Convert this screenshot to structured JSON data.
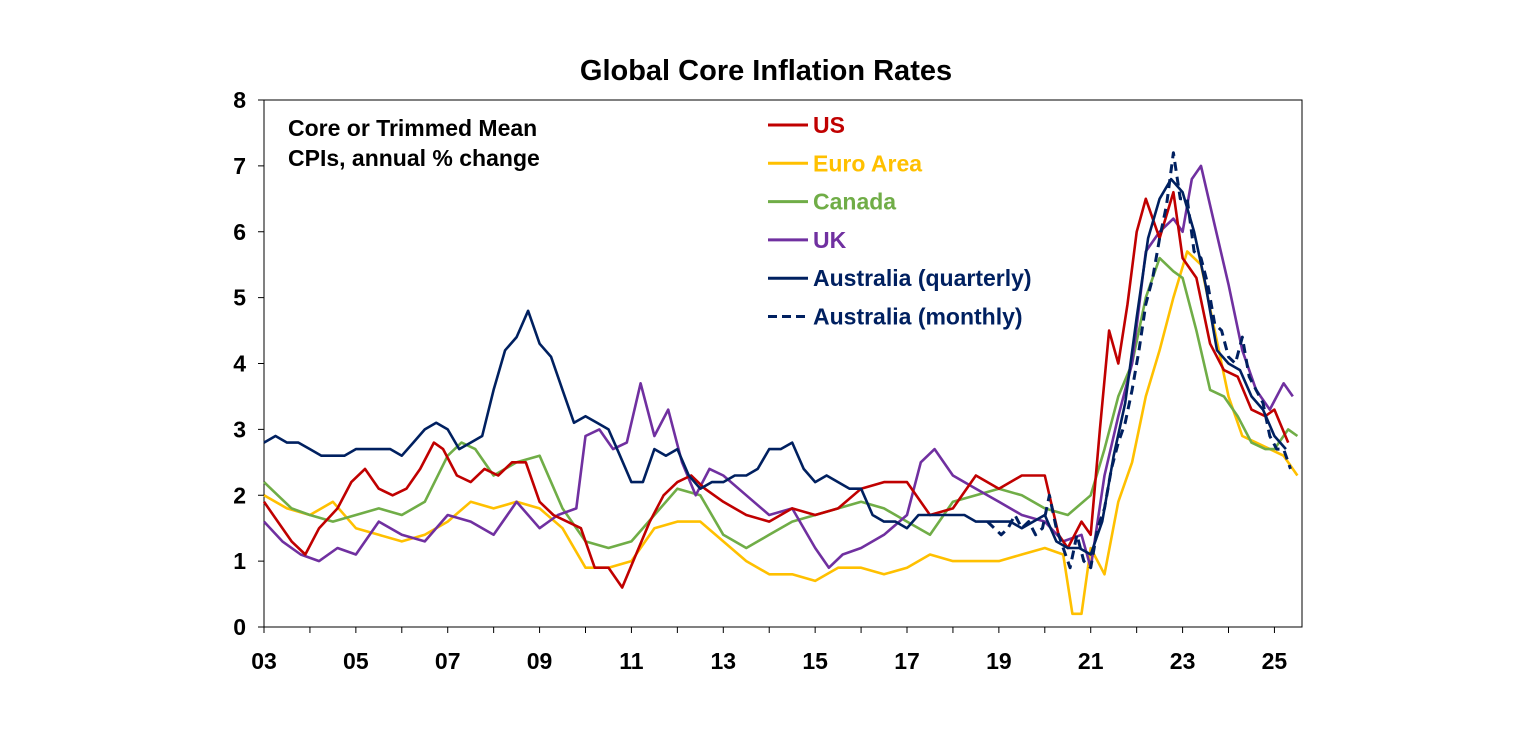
{
  "chart_data": {
    "type": "line",
    "title": "Global Core Inflation Rates",
    "annotation": [
      "Core or Trimmed Mean",
      "CPIs, annual % change"
    ],
    "xlabel": "",
    "ylabel": "",
    "xlim": [
      2003.0,
      2025.6
    ],
    "ylim": [
      0,
      8
    ],
    "yticks": [
      0,
      1,
      2,
      3,
      4,
      5,
      6,
      7,
      8
    ],
    "xtick_values": [
      2003,
      2005,
      2007,
      2009,
      2011,
      2013,
      2015,
      2017,
      2019,
      2021,
      2023,
      2025
    ],
    "xtick_labels": [
      "03",
      "05",
      "07",
      "09",
      "11",
      "13",
      "15",
      "17",
      "19",
      "21",
      "23",
      "25"
    ],
    "grid": false,
    "legend_position": "top-center",
    "series": [
      {
        "name": "US",
        "color": "#c00000",
        "style": "solid",
        "x": [
          2003.0,
          2003.3,
          2003.6,
          2003.9,
          2004.2,
          2004.6,
          2004.9,
          2005.2,
          2005.5,
          2005.8,
          2006.1,
          2006.4,
          2006.7,
          2006.9,
          2007.2,
          2007.5,
          2007.8,
          2008.1,
          2008.4,
          2008.7,
          2009.0,
          2009.3,
          2009.6,
          2009.9,
          2010.2,
          2010.5,
          2010.8,
          2011.1,
          2011.4,
          2011.7,
          2012.0,
          2012.3,
          2012.6,
          2013.0,
          2013.5,
          2014.0,
          2014.5,
          2015.0,
          2015.5,
          2016.0,
          2016.5,
          2017.0,
          2017.5,
          2018.0,
          2018.5,
          2019.0,
          2019.5,
          2020.0,
          2020.3,
          2020.5,
          2020.8,
          2021.0,
          2021.2,
          2021.4,
          2021.6,
          2021.8,
          2022.0,
          2022.2,
          2022.5,
          2022.8,
          2023.0,
          2023.3,
          2023.6,
          2023.9,
          2024.2,
          2024.5,
          2024.8,
          2025.0,
          2025.3
        ],
        "values": [
          1.9,
          1.6,
          1.3,
          1.1,
          1.5,
          1.8,
          2.2,
          2.4,
          2.1,
          2.0,
          2.1,
          2.4,
          2.8,
          2.7,
          2.3,
          2.2,
          2.4,
          2.3,
          2.5,
          2.5,
          1.9,
          1.7,
          1.6,
          1.5,
          0.9,
          0.9,
          0.6,
          1.1,
          1.6,
          2.0,
          2.2,
          2.3,
          2.1,
          1.9,
          1.7,
          1.6,
          1.8,
          1.7,
          1.8,
          2.1,
          2.2,
          2.2,
          1.7,
          1.8,
          2.3,
          2.1,
          2.3,
          2.3,
          1.4,
          1.2,
          1.6,
          1.4,
          3.0,
          4.5,
          4.0,
          4.9,
          6.0,
          6.5,
          5.9,
          6.6,
          5.6,
          5.3,
          4.3,
          3.9,
          3.8,
          3.3,
          3.2,
          3.3,
          2.8
        ]
      },
      {
        "name": "Euro Area",
        "color": "#ffc000",
        "style": "solid",
        "x": [
          2003.0,
          2003.5,
          2004.0,
          2004.5,
          2005.0,
          2005.5,
          2006.0,
          2006.5,
          2007.0,
          2007.5,
          2008.0,
          2008.5,
          2009.0,
          2009.5,
          2010.0,
          2010.5,
          2011.0,
          2011.5,
          2012.0,
          2012.5,
          2013.0,
          2013.5,
          2014.0,
          2014.5,
          2015.0,
          2015.5,
          2016.0,
          2016.5,
          2017.0,
          2017.5,
          2018.0,
          2018.5,
          2019.0,
          2019.5,
          2020.0,
          2020.4,
          2020.6,
          2020.8,
          2021.0,
          2021.3,
          2021.6,
          2021.9,
          2022.2,
          2022.5,
          2022.8,
          2023.1,
          2023.4,
          2023.7,
          2024.0,
          2024.3,
          2024.6,
          2024.9,
          2025.2,
          2025.5
        ],
        "values": [
          2.0,
          1.8,
          1.7,
          1.9,
          1.5,
          1.4,
          1.3,
          1.4,
          1.6,
          1.9,
          1.8,
          1.9,
          1.8,
          1.5,
          0.9,
          0.9,
          1.0,
          1.5,
          1.6,
          1.6,
          1.3,
          1.0,
          0.8,
          0.8,
          0.7,
          0.9,
          0.9,
          0.8,
          0.9,
          1.1,
          1.0,
          1.0,
          1.0,
          1.1,
          1.2,
          1.1,
          0.2,
          0.2,
          1.2,
          0.8,
          1.9,
          2.5,
          3.5,
          4.2,
          5.0,
          5.7,
          5.5,
          4.5,
          3.5,
          2.9,
          2.8,
          2.7,
          2.6,
          2.3
        ]
      },
      {
        "name": "Canada",
        "color": "#70ad47",
        "style": "solid",
        "x": [
          2003.0,
          2003.3,
          2003.6,
          2004.0,
          2004.5,
          2005.0,
          2005.5,
          2006.0,
          2006.5,
          2007.0,
          2007.3,
          2007.6,
          2008.0,
          2008.5,
          2009.0,
          2009.5,
          2010.0,
          2010.5,
          2011.0,
          2011.5,
          2012.0,
          2012.5,
          2013.0,
          2013.5,
          2014.0,
          2014.5,
          2015.0,
          2015.5,
          2016.0,
          2016.5,
          2017.0,
          2017.5,
          2018.0,
          2018.5,
          2019.0,
          2019.5,
          2020.0,
          2020.5,
          2021.0,
          2021.3,
          2021.6,
          2021.9,
          2022.2,
          2022.5,
          2022.8,
          2023.0,
          2023.3,
          2023.6,
          2023.9,
          2024.2,
          2024.5,
          2024.8,
          2025.0,
          2025.3,
          2025.5
        ],
        "values": [
          2.2,
          2.0,
          1.8,
          1.7,
          1.6,
          1.7,
          1.8,
          1.7,
          1.9,
          2.6,
          2.8,
          2.7,
          2.3,
          2.5,
          2.6,
          1.8,
          1.3,
          1.2,
          1.3,
          1.7,
          2.1,
          2.0,
          1.4,
          1.2,
          1.4,
          1.6,
          1.7,
          1.8,
          1.9,
          1.8,
          1.6,
          1.4,
          1.9,
          2.0,
          2.1,
          2.0,
          1.8,
          1.7,
          2.0,
          2.7,
          3.5,
          4.0,
          5.0,
          5.6,
          5.4,
          5.3,
          4.5,
          3.6,
          3.5,
          3.2,
          2.8,
          2.7,
          2.7,
          3.0,
          2.9
        ]
      },
      {
        "name": "UK",
        "color": "#7030a0",
        "style": "solid",
        "x": [
          2003.0,
          2003.4,
          2003.8,
          2004.2,
          2004.6,
          2005.0,
          2005.5,
          2006.0,
          2006.5,
          2007.0,
          2007.5,
          2008.0,
          2008.5,
          2009.0,
          2009.4,
          2009.8,
          2010.0,
          2010.3,
          2010.6,
          2010.9,
          2011.2,
          2011.5,
          2011.8,
          2012.1,
          2012.4,
          2012.7,
          2013.0,
          2013.5,
          2014.0,
          2014.5,
          2015.0,
          2015.3,
          2015.6,
          2016.0,
          2016.5,
          2017.0,
          2017.3,
          2017.6,
          2018.0,
          2018.5,
          2019.0,
          2019.5,
          2020.0,
          2020.4,
          2020.8,
          2021.0,
          2021.3,
          2021.6,
          2021.9,
          2022.2,
          2022.5,
          2022.8,
          2023.0,
          2023.2,
          2023.4,
          2023.7,
          2024.0,
          2024.3,
          2024.6,
          2024.9,
          2025.2,
          2025.4
        ],
        "values": [
          1.6,
          1.3,
          1.1,
          1.0,
          1.2,
          1.1,
          1.6,
          1.4,
          1.3,
          1.7,
          1.6,
          1.4,
          1.9,
          1.5,
          1.7,
          1.8,
          2.9,
          3.0,
          2.7,
          2.8,
          3.7,
          2.9,
          3.3,
          2.5,
          2.0,
          2.4,
          2.3,
          2.0,
          1.7,
          1.8,
          1.2,
          0.9,
          1.1,
          1.2,
          1.4,
          1.7,
          2.5,
          2.7,
          2.3,
          2.1,
          1.9,
          1.7,
          1.6,
          1.3,
          1.4,
          0.9,
          2.3,
          3.2,
          4.0,
          5.7,
          6.0,
          6.2,
          6.0,
          6.8,
          7.0,
          6.1,
          5.2,
          4.2,
          3.6,
          3.3,
          3.7,
          3.5
        ]
      },
      {
        "name": "Australia (quarterly)",
        "color": "#002060",
        "style": "solid",
        "x": [
          2003.0,
          2003.25,
          2003.5,
          2003.75,
          2004.0,
          2004.25,
          2004.5,
          2004.75,
          2005.0,
          2005.25,
          2005.5,
          2005.75,
          2006.0,
          2006.25,
          2006.5,
          2006.75,
          2007.0,
          2007.25,
          2007.5,
          2007.75,
          2008.0,
          2008.25,
          2008.5,
          2008.75,
          2009.0,
          2009.25,
          2009.5,
          2009.75,
          2010.0,
          2010.25,
          2010.5,
          2010.75,
          2011.0,
          2011.25,
          2011.5,
          2011.75,
          2012.0,
          2012.25,
          2012.5,
          2012.75,
          2013.0,
          2013.25,
          2013.5,
          2013.75,
          2014.0,
          2014.25,
          2014.5,
          2014.75,
          2015.0,
          2015.25,
          2015.5,
          2015.75,
          2016.0,
          2016.25,
          2016.5,
          2016.75,
          2017.0,
          2017.25,
          2017.5,
          2017.75,
          2018.0,
          2018.25,
          2018.5,
          2018.75,
          2019.0,
          2019.25,
          2019.5,
          2019.75,
          2020.0,
          2020.25,
          2020.5,
          2020.75,
          2021.0,
          2021.25,
          2021.5,
          2021.75,
          2022.0,
          2022.25,
          2022.5,
          2022.75,
          2023.0,
          2023.25,
          2023.5,
          2023.75,
          2024.0,
          2024.25,
          2024.5,
          2024.75,
          2025.0,
          2025.25
        ],
        "values": [
          2.8,
          2.9,
          2.8,
          2.8,
          2.7,
          2.6,
          2.6,
          2.6,
          2.7,
          2.7,
          2.7,
          2.7,
          2.6,
          2.8,
          3.0,
          3.1,
          3.0,
          2.7,
          2.8,
          2.9,
          3.6,
          4.2,
          4.4,
          4.8,
          4.3,
          4.1,
          3.6,
          3.1,
          3.2,
          3.1,
          3.0,
          2.6,
          2.2,
          2.2,
          2.7,
          2.6,
          2.7,
          2.3,
          2.1,
          2.2,
          2.2,
          2.3,
          2.3,
          2.4,
          2.7,
          2.7,
          2.8,
          2.4,
          2.2,
          2.3,
          2.2,
          2.1,
          2.1,
          1.7,
          1.6,
          1.6,
          1.5,
          1.7,
          1.7,
          1.7,
          1.7,
          1.7,
          1.6,
          1.6,
          1.6,
          1.6,
          1.5,
          1.6,
          1.7,
          1.3,
          1.2,
          1.2,
          1.1,
          1.6,
          2.6,
          3.4,
          4.7,
          5.9,
          6.5,
          6.8,
          6.6,
          6.0,
          5.2,
          4.2,
          4.0,
          3.9,
          3.5,
          3.3,
          2.9,
          2.7
        ]
      },
      {
        "name": "Australia (monthly)",
        "color": "#002060",
        "style": "dashed",
        "x": [
          2018.75,
          2018.9,
          2019.05,
          2019.2,
          2019.35,
          2019.5,
          2019.65,
          2019.8,
          2019.95,
          2020.1,
          2020.25,
          2020.4,
          2020.55,
          2020.7,
          2020.85,
          2021.0,
          2021.15,
          2021.3,
          2021.45,
          2021.6,
          2021.75,
          2021.9,
          2022.05,
          2022.2,
          2022.35,
          2022.5,
          2022.65,
          2022.8,
          2022.95,
          2023.1,
          2023.25,
          2023.4,
          2023.55,
          2023.7,
          2023.85,
          2024.0,
          2024.15,
          2024.3,
          2024.45,
          2024.6,
          2024.75,
          2024.9,
          2025.05,
          2025.2,
          2025.35
        ],
        "values": [
          1.6,
          1.5,
          1.4,
          1.5,
          1.7,
          1.5,
          1.6,
          1.4,
          1.5,
          2.0,
          1.5,
          1.2,
          0.9,
          1.4,
          1.0,
          0.9,
          1.5,
          1.8,
          2.4,
          2.8,
          3.1,
          3.6,
          4.2,
          4.9,
          5.3,
          5.9,
          6.4,
          7.2,
          6.5,
          6.5,
          5.7,
          5.6,
          5.2,
          4.6,
          4.5,
          4.1,
          4.0,
          4.4,
          3.8,
          3.6,
          3.4,
          2.9,
          2.7,
          2.7,
          2.4
        ]
      }
    ]
  }
}
